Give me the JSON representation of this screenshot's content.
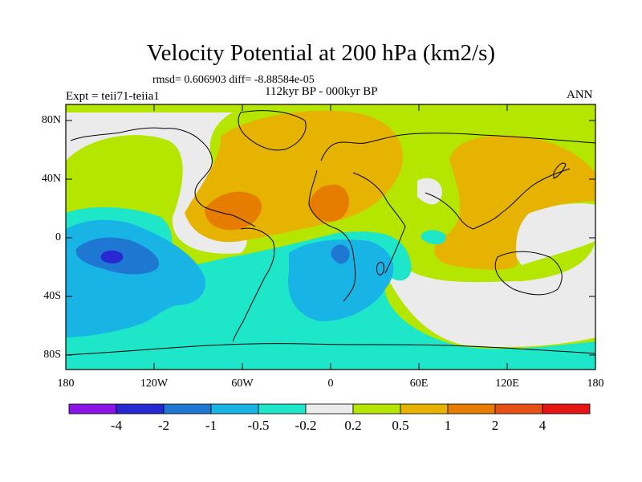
{
  "title": "Velocity Potential at 200 hPa (km2/s)",
  "stats": "rmsd= 0.606903 diff= -8.88584e-05",
  "period": "112kyr BP - 000kyr BP",
  "experiment": "Expt = teii71-teiia1",
  "season": "ANN",
  "lat_labels": [
    "80N",
    "40N",
    "0",
    "40S",
    "80S"
  ],
  "lon_labels": [
    "180",
    "120W",
    "60W",
    "0",
    "60E",
    "120E",
    "180"
  ],
  "colorbar": {
    "colors": [
      "#8a14e6",
      "#2828d2",
      "#1e78d2",
      "#18b4e6",
      "#1ee6c8",
      "#ebebeb",
      "#b4e600",
      "#e6b400",
      "#e67d00",
      "#e65014",
      "#e61414"
    ],
    "labels": [
      "-4",
      "-2",
      "-1",
      "-0.5",
      "-0.2",
      "0.2",
      "0.5",
      "1",
      "2",
      "4"
    ]
  },
  "map_colors": {
    "ocean_bg": "#b4e600",
    "neutral": "#ebebeb",
    "neg1": "#1ee6c8",
    "neg2": "#18b4e6",
    "neg3": "#1e78d2",
    "neg4": "#2828d2",
    "pos1": "#e6b400",
    "pos2": "#e67d00"
  }
}
